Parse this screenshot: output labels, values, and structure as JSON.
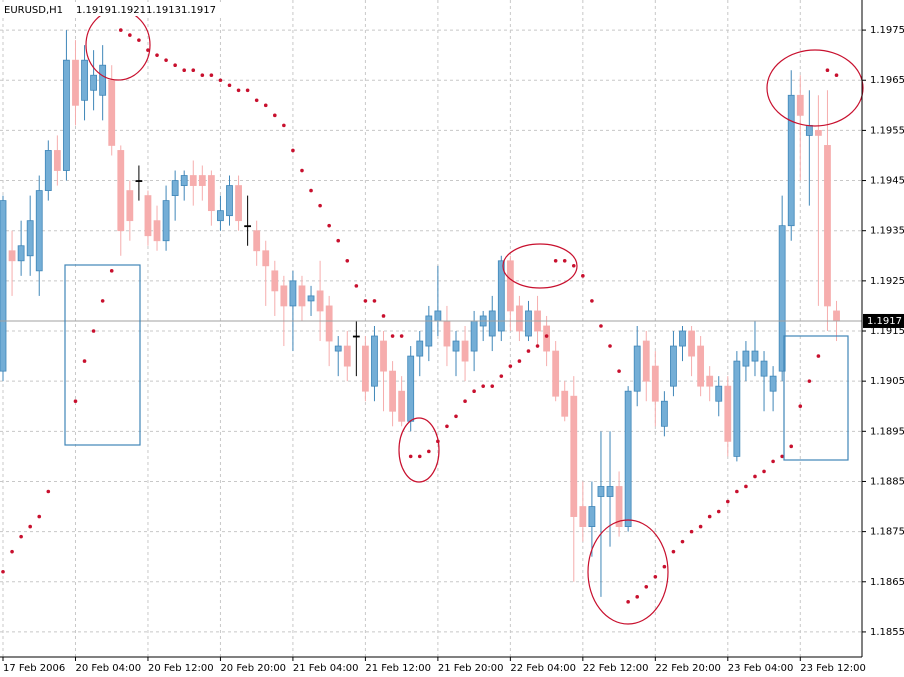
{
  "chart_data": {
    "type": "candlestick",
    "symbol": "EURUSD,H1",
    "ylim": [
      1.185,
      1.1981
    ],
    "yticks": [
      1.1975,
      1.1965,
      1.1955,
      1.1945,
      1.1935,
      1.1925,
      1.1915,
      1.1905,
      1.1895,
      1.1885,
      1.1875,
      1.1865,
      1.1855
    ],
    "xticks": [
      {
        "value": 0,
        "label": "17 Feb 2006"
      },
      {
        "value": 8,
        "label": "20 Feb 04:00"
      },
      {
        "value": 16,
        "label": "20 Feb 12:00"
      },
      {
        "value": 24,
        "label": "20 Feb 20:00"
      },
      {
        "value": 32,
        "label": "21 Feb 04:00"
      },
      {
        "value": 40,
        "label": "21 Feb 12:00"
      },
      {
        "value": 48,
        "label": "21 Feb 20:00"
      },
      {
        "value": 56,
        "label": "22 Feb 04:00"
      },
      {
        "value": 64,
        "label": "22 Feb 12:00"
      },
      {
        "value": 72,
        "label": "22 Feb 20:00"
      },
      {
        "value": 80,
        "label": "23 Feb 04:00"
      },
      {
        "value": 88,
        "label": "23 Feb 12:00"
      }
    ],
    "grid": true,
    "up_color": "#74aed6",
    "up_edge": "#3f86b8",
    "down_color": "#f6adad",
    "doji_color": "#000000",
    "sar_color": "#c8102e",
    "ohlc": [
      [
        1.1907,
        1.1942,
        1.1905,
        1.1941
      ],
      [
        1.1931,
        1.1935,
        1.1922,
        1.1929
      ],
      [
        1.1929,
        1.1937,
        1.1926,
        1.1932
      ],
      [
        1.193,
        1.1942,
        1.1926,
        1.1937
      ],
      [
        1.1927,
        1.1946,
        1.1922,
        1.1943
      ],
      [
        1.1943,
        1.1953,
        1.1941,
        1.1951
      ],
      [
        1.1951,
        1.1954,
        1.1944,
        1.1947
      ],
      [
        1.1947,
        1.1975,
        1.1945,
        1.1969
      ],
      [
        1.1969,
        1.1973,
        1.1956,
        1.196
      ],
      [
        1.1961,
        1.1972,
        1.1957,
        1.1969
      ],
      [
        1.1963,
        1.1971,
        1.1959,
        1.1966
      ],
      [
        1.1962,
        1.1972,
        1.1957,
        1.1968
      ],
      [
        1.1965,
        1.1968,
        1.195,
        1.1952
      ],
      [
        1.1951,
        1.1952,
        1.193,
        1.1935
      ],
      [
        1.1943,
        1.1945,
        1.1933,
        1.1937
      ],
      [
        1.1945,
        1.1948,
        1.1941,
        1.1945
      ],
      [
        1.1942,
        1.1943,
        1.1932,
        1.1934
      ],
      [
        1.1937,
        1.194,
        1.1931,
        1.1933
      ],
      [
        1.1933,
        1.1944,
        1.1931,
        1.1941
      ],
      [
        1.1942,
        1.1947,
        1.1937,
        1.1945
      ],
      [
        1.1944,
        1.1947,
        1.1941,
        1.1946
      ],
      [
        1.1946,
        1.1949,
        1.194,
        1.1944
      ],
      [
        1.1946,
        1.1948,
        1.1941,
        1.1944
      ],
      [
        1.1946,
        1.1947,
        1.1936,
        1.1939
      ],
      [
        1.1937,
        1.1942,
        1.1935,
        1.1939
      ],
      [
        1.1938,
        1.1946,
        1.1936,
        1.1944
      ],
      [
        1.1944,
        1.1946,
        1.1935,
        1.1937
      ],
      [
        1.1936,
        1.1942,
        1.1932,
        1.1936
      ],
      [
        1.1935,
        1.1937,
        1.1928,
        1.1931
      ],
      [
        1.1931,
        1.1933,
        1.192,
        1.1928
      ],
      [
        1.1927,
        1.1929,
        1.1918,
        1.1923
      ],
      [
        1.1924,
        1.1926,
        1.1912,
        1.192
      ],
      [
        1.192,
        1.1927,
        1.1911,
        1.1925
      ],
      [
        1.1924,
        1.1926,
        1.1917,
        1.192
      ],
      [
        1.1921,
        1.1924,
        1.1918,
        1.1922
      ],
      [
        1.1923,
        1.1929,
        1.1913,
        1.1919
      ],
      [
        1.192,
        1.1922,
        1.1908,
        1.1913
      ],
      [
        1.1911,
        1.1914,
        1.1906,
        1.1912
      ],
      [
        1.1912,
        1.1915,
        1.1905,
        1.1908
      ],
      [
        1.1914,
        1.1917,
        1.1906,
        1.1914
      ],
      [
        1.1912,
        1.1914,
        1.1901,
        1.1903
      ],
      [
        1.1904,
        1.1916,
        1.1901,
        1.1914
      ],
      [
        1.1913,
        1.1915,
        1.1899,
        1.1907
      ],
      [
        1.1907,
        1.1909,
        1.1896,
        1.1899
      ],
      [
        1.1903,
        1.1906,
        1.1896,
        1.1897
      ],
      [
        1.1897,
        1.1912,
        1.1895,
        1.191
      ],
      [
        1.191,
        1.1915,
        1.1906,
        1.1913
      ],
      [
        1.1912,
        1.192,
        1.1909,
        1.1918
      ],
      [
        1.1917,
        1.1928,
        1.1914,
        1.1919
      ],
      [
        1.1917,
        1.192,
        1.1908,
        1.1912
      ],
      [
        1.1911,
        1.1915,
        1.1906,
        1.1913
      ],
      [
        1.1913,
        1.1916,
        1.1905,
        1.1909
      ],
      [
        1.1911,
        1.1919,
        1.1907,
        1.1917
      ],
      [
        1.1916,
        1.1919,
        1.1913,
        1.1918
      ],
      [
        1.1914,
        1.1922,
        1.1911,
        1.1919
      ],
      [
        1.1915,
        1.193,
        1.1913,
        1.1929
      ],
      [
        1.1929,
        1.193,
        1.1915,
        1.1919
      ],
      [
        1.192,
        1.1922,
        1.1913,
        1.1915
      ],
      [
        1.1914,
        1.1921,
        1.1913,
        1.1919
      ],
      [
        1.1919,
        1.1922,
        1.1912,
        1.1915
      ],
      [
        1.1916,
        1.1918,
        1.1908,
        1.1911
      ],
      [
        1.1911,
        1.1913,
        1.1901,
        1.1902
      ],
      [
        1.1903,
        1.1905,
        1.1897,
        1.1898
      ],
      [
        1.1902,
        1.1906,
        1.1865,
        1.1878
      ],
      [
        1.188,
        1.1885,
        1.1873,
        1.1876
      ],
      [
        1.1876,
        1.1885,
        1.187,
        1.188
      ],
      [
        1.1882,
        1.1895,
        1.1862,
        1.1884
      ],
      [
        1.1882,
        1.1895,
        1.1872,
        1.1884
      ],
      [
        1.1884,
        1.1887,
        1.1874,
        1.1876
      ],
      [
        1.1876,
        1.1904,
        1.1875,
        1.1903
      ],
      [
        1.1903,
        1.1916,
        1.19,
        1.1912
      ],
      [
        1.1913,
        1.1915,
        1.1901,
        1.1905
      ],
      [
        1.1908,
        1.1911,
        1.1896,
        1.1901
      ],
      [
        1.1896,
        1.1903,
        1.1894,
        1.1901
      ],
      [
        1.1904,
        1.1915,
        1.1902,
        1.1912
      ],
      [
        1.1912,
        1.1916,
        1.1909,
        1.1915
      ],
      [
        1.1915,
        1.1916,
        1.1906,
        1.191
      ],
      [
        1.1912,
        1.1914,
        1.1902,
        1.1904
      ],
      [
        1.1906,
        1.1908,
        1.1901,
        1.1904
      ],
      [
        1.1901,
        1.1906,
        1.1898,
        1.1904
      ],
      [
        1.1904,
        1.1906,
        1.189,
        1.1893
      ],
      [
        1.189,
        1.1911,
        1.1889,
        1.1909
      ],
      [
        1.1908,
        1.1913,
        1.1905,
        1.1911
      ],
      [
        1.1909,
        1.1917,
        1.1906,
        1.1911
      ],
      [
        1.1906,
        1.1911,
        1.1899,
        1.1909
      ],
      [
        1.1903,
        1.1908,
        1.1899,
        1.1906
      ],
      [
        1.1907,
        1.1942,
        1.1905,
        1.1936
      ],
      [
        1.1936,
        1.1967,
        1.1933,
        1.1962
      ],
      [
        1.1962,
        1.1966,
        1.1945,
        1.1958
      ],
      [
        1.1954,
        1.1963,
        1.194,
        1.1956
      ],
      [
        1.1955,
        1.1962,
        1.192,
        1.1954
      ],
      [
        1.1952,
        1.1963,
        1.1915,
        1.192
      ],
      [
        1.1919,
        1.1921,
        1.1913,
        1.1917
      ]
    ],
    "sar": [
      1.1867,
      1.1871,
      1.1874,
      1.1876,
      1.1878,
      1.1883,
      null,
      null,
      1.1901,
      1.1909,
      1.1915,
      1.1921,
      1.1927,
      1.1975,
      1.1974,
      1.1973,
      1.1971,
      1.197,
      1.1969,
      1.1968,
      1.1967,
      1.1967,
      1.1966,
      1.1966,
      1.1965,
      1.1964,
      1.1963,
      1.1963,
      1.1961,
      1.196,
      1.1958,
      1.1956,
      1.1951,
      1.1947,
      1.1943,
      1.194,
      1.1936,
      1.1933,
      1.1929,
      1.1924,
      1.1921,
      1.1921,
      1.1918,
      1.1914,
      1.1914,
      1.189,
      1.189,
      1.1891,
      1.1893,
      1.1896,
      1.1898,
      1.1901,
      1.1903,
      1.1904,
      1.1904,
      1.1906,
      1.1908,
      1.1909,
      1.1911,
      1.1912,
      1.1914,
      1.1929,
      1.1929,
      1.1928,
      1.1926,
      1.1921,
      1.1916,
      1.1912,
      1.1907,
      1.1861,
      1.1862,
      1.1864,
      1.1866,
      1.1868,
      1.1871,
      1.1873,
      1.1875,
      1.1876,
      1.1878,
      1.1879,
      1.1881,
      1.1883,
      1.1884,
      1.1886,
      1.1887,
      1.1889,
      1.189,
      1.1892,
      1.19,
      1.1905,
      1.191,
      1.1967,
      1.1966
    ]
  }
}
